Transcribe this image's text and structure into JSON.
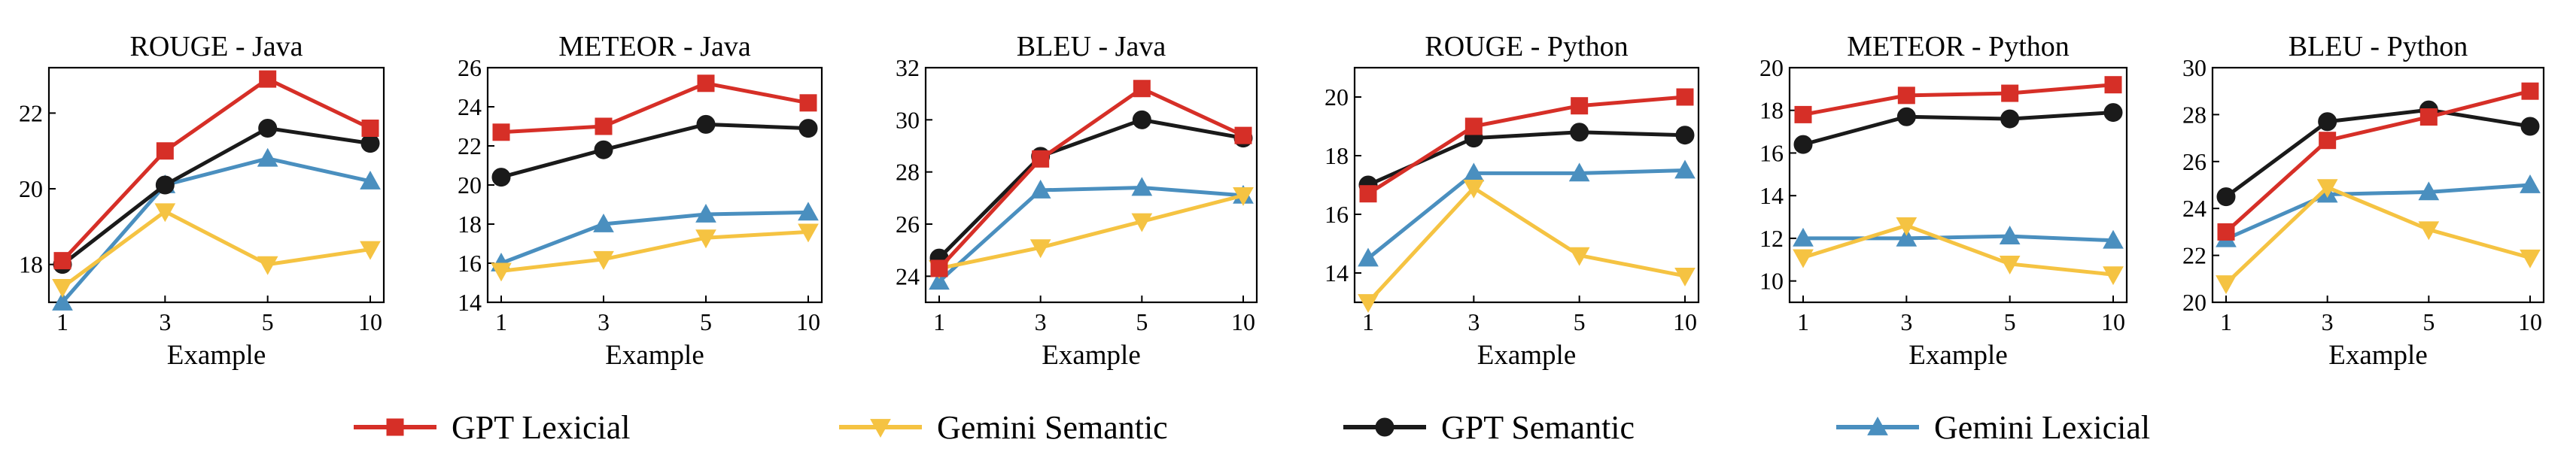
{
  "figure": {
    "legend": {
      "placement": "bottom-center",
      "entries": [
        {
          "name": "GPT Lexicial",
          "color": "#d62f27",
          "marker": "square"
        },
        {
          "name": "Gemini Semantic",
          "color": "#f5c342",
          "marker": "triangle-down"
        },
        {
          "name": "GPT Semantic",
          "color": "#1a1a1a",
          "marker": "circle"
        },
        {
          "name": "Gemini Lexicial",
          "color": "#4a8fbf",
          "marker": "triangle-up"
        }
      ]
    }
  },
  "chart_data": [
    {
      "type": "line",
      "title": "ROUGE - Java",
      "xlabel": "Example",
      "ylabel": "",
      "categories": [
        "1",
        "3",
        "5",
        "10"
      ],
      "ylim": [
        17,
        23.2
      ],
      "yticks": [
        18,
        20,
        22
      ],
      "series": [
        {
          "name": "GPT Lexicial",
          "values": [
            18.1,
            21.0,
            22.9,
            21.6
          ]
        },
        {
          "name": "Gemini Semantic",
          "values": [
            17.4,
            19.4,
            18.0,
            18.4
          ]
        },
        {
          "name": "GPT Semantic",
          "values": [
            18.0,
            20.1,
            21.6,
            21.2
          ]
        },
        {
          "name": "Gemini Lexicial",
          "values": [
            17.0,
            20.1,
            20.8,
            20.2
          ]
        }
      ]
    },
    {
      "type": "line",
      "title": "METEOR - Java",
      "xlabel": "Example",
      "ylabel": "",
      "categories": [
        "1",
        "3",
        "5",
        "10"
      ],
      "ylim": [
        14,
        26
      ],
      "yticks": [
        14,
        16,
        18,
        20,
        22,
        24,
        26
      ],
      "series": [
        {
          "name": "GPT Lexicial",
          "values": [
            22.7,
            23.0,
            25.2,
            24.2
          ]
        },
        {
          "name": "Gemini Semantic",
          "values": [
            15.6,
            16.2,
            17.3,
            17.6
          ]
        },
        {
          "name": "GPT Semantic",
          "values": [
            20.4,
            21.8,
            23.1,
            22.9
          ]
        },
        {
          "name": "Gemini Lexicial",
          "values": [
            16.0,
            18.0,
            18.5,
            18.6
          ]
        }
      ]
    },
    {
      "type": "line",
      "title": "BLEU - Java",
      "xlabel": "Example",
      "ylabel": "",
      "categories": [
        "1",
        "3",
        "5",
        "10"
      ],
      "ylim": [
        23,
        32
      ],
      "yticks": [
        24,
        26,
        28,
        30,
        32
      ],
      "series": [
        {
          "name": "GPT Lexicial",
          "values": [
            24.3,
            28.5,
            31.2,
            29.4
          ]
        },
        {
          "name": "Gemini Semantic",
          "values": [
            24.3,
            25.1,
            26.1,
            27.1
          ]
        },
        {
          "name": "GPT Semantic",
          "values": [
            24.7,
            28.6,
            30.0,
            29.3
          ]
        },
        {
          "name": "Gemini Lexicial",
          "values": [
            23.8,
            27.3,
            27.4,
            27.1
          ]
        }
      ]
    },
    {
      "type": "line",
      "title": "ROUGE - Python",
      "xlabel": "Example",
      "ylabel": "",
      "categories": [
        "1",
        "3",
        "5",
        "10"
      ],
      "ylim": [
        13,
        21
      ],
      "yticks": [
        14,
        16,
        18,
        20
      ],
      "series": [
        {
          "name": "GPT Lexicial",
          "values": [
            16.7,
            19.0,
            19.7,
            20.0
          ]
        },
        {
          "name": "Gemini Semantic",
          "values": [
            13.0,
            16.9,
            14.6,
            13.9
          ]
        },
        {
          "name": "GPT Semantic",
          "values": [
            17.0,
            18.6,
            18.8,
            18.7
          ]
        },
        {
          "name": "Gemini Lexicial",
          "values": [
            14.5,
            17.4,
            17.4,
            17.5
          ]
        }
      ]
    },
    {
      "type": "line",
      "title": "METEOR - Python",
      "xlabel": "Example",
      "ylabel": "",
      "categories": [
        "1",
        "3",
        "5",
        "10"
      ],
      "ylim": [
        9,
        20
      ],
      "yticks": [
        10,
        12,
        14,
        16,
        18,
        20
      ],
      "series": [
        {
          "name": "GPT Lexicial",
          "values": [
            17.8,
            18.7,
            18.8,
            19.2
          ]
        },
        {
          "name": "Gemini Semantic",
          "values": [
            11.1,
            12.6,
            10.8,
            10.3
          ]
        },
        {
          "name": "GPT Semantic",
          "values": [
            16.4,
            17.7,
            17.6,
            17.9
          ]
        },
        {
          "name": "Gemini Lexicial",
          "values": [
            12.0,
            12.0,
            12.1,
            11.9
          ]
        }
      ]
    },
    {
      "type": "line",
      "title": "BLEU - Python",
      "xlabel": "Example",
      "ylabel": "",
      "categories": [
        "1",
        "3",
        "5",
        "10"
      ],
      "ylim": [
        20,
        30
      ],
      "yticks": [
        20,
        22,
        24,
        26,
        28,
        30
      ],
      "series": [
        {
          "name": "GPT Lexicial",
          "values": [
            23.0,
            26.9,
            27.9,
            29.0
          ]
        },
        {
          "name": "Gemini Semantic",
          "values": [
            20.8,
            24.9,
            23.1,
            21.9
          ]
        },
        {
          "name": "GPT Semantic",
          "values": [
            24.5,
            27.7,
            28.2,
            27.5
          ]
        },
        {
          "name": "Gemini Lexicial",
          "values": [
            22.7,
            24.6,
            24.7,
            25.0
          ]
        }
      ]
    }
  ]
}
